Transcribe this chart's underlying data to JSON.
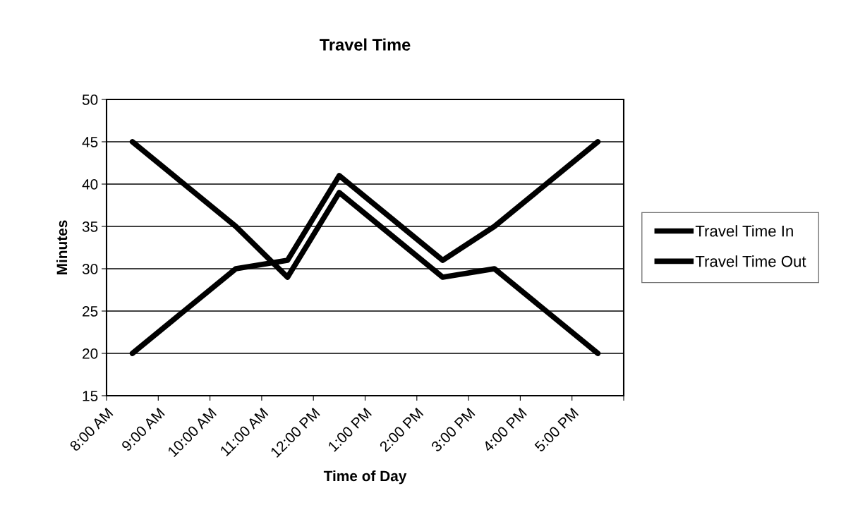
{
  "chart_data": {
    "type": "line",
    "title": "Travel Time",
    "xlabel": "Time of Day",
    "ylabel": "Minutes",
    "x": [
      8.5,
      10.5,
      11.5,
      12.5,
      14.5,
      15.5,
      17.5
    ],
    "series": [
      {
        "name": "Travel Time In",
        "color": "#000000",
        "values": [
          20,
          30,
          31,
          41,
          31,
          35,
          45
        ]
      },
      {
        "name": "Travel Time Out",
        "color": "#000000",
        "values": [
          45,
          35,
          29,
          39,
          29,
          30,
          20
        ]
      }
    ],
    "xlim": [
      8,
      18
    ],
    "xticks": [
      {
        "value": 8,
        "label": "8:00 AM"
      },
      {
        "value": 9,
        "label": "9:00 AM"
      },
      {
        "value": 10,
        "label": "10:00 AM"
      },
      {
        "value": 11,
        "label": "11:00 AM"
      },
      {
        "value": 12,
        "label": "12:00 PM"
      },
      {
        "value": 13,
        "label": "1:00 PM"
      },
      {
        "value": 14,
        "label": "2:00 PM"
      },
      {
        "value": 15,
        "label": "3:00 PM"
      },
      {
        "value": 16,
        "label": "4:00 PM"
      },
      {
        "value": 17,
        "label": "5:00 PM"
      },
      {
        "value": 18,
        "label": null
      }
    ],
    "ylim": [
      15,
      50
    ],
    "yticks": [
      15,
      20,
      25,
      30,
      35,
      40,
      45,
      50
    ],
    "grid": "y",
    "legend": "right",
    "marker": "none",
    "line_style": "solid"
  }
}
